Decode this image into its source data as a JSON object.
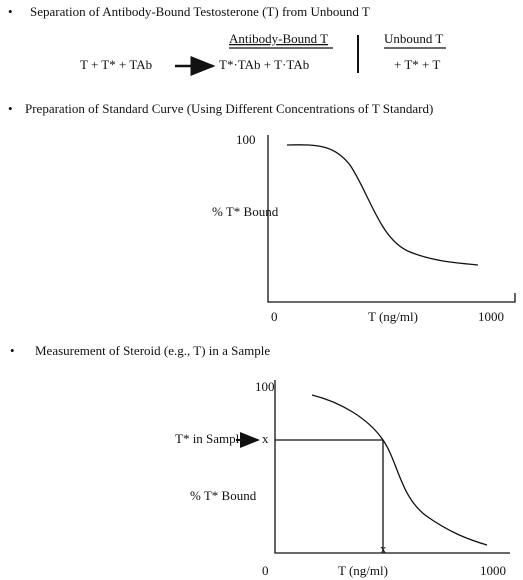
{
  "sections": [
    {
      "bullet": "•",
      "title": "Separation of Antibody-Bound Testosterone (T) from Unbound T",
      "bound_header": "Antibody-Bound T",
      "unbound_header": "Unbound T",
      "reactants": "T + T* + TAb",
      "bound_products": "T*·TAb + T·TAb",
      "unbound_products": "+ T* + T"
    },
    {
      "bullet": "•",
      "title": "Preparation of Standard Curve (Using Different Concentrations of T Standard)",
      "y_top": "100",
      "y_label": "% T* Bound",
      "x_start": "0",
      "x_label": "T (ng/ml)",
      "x_end": "1000"
    },
    {
      "bullet": "•",
      "title": "Measurement of Steroid (e.g., T) in a Sample",
      "y_top": "100",
      "y_label": "% T* Bound",
      "x_start": "0",
      "x_label": "T (ng/ml)",
      "x_end": "1000",
      "sample_label": "T* in Sample",
      "y_marker": "x",
      "x_marker": "x"
    }
  ]
}
